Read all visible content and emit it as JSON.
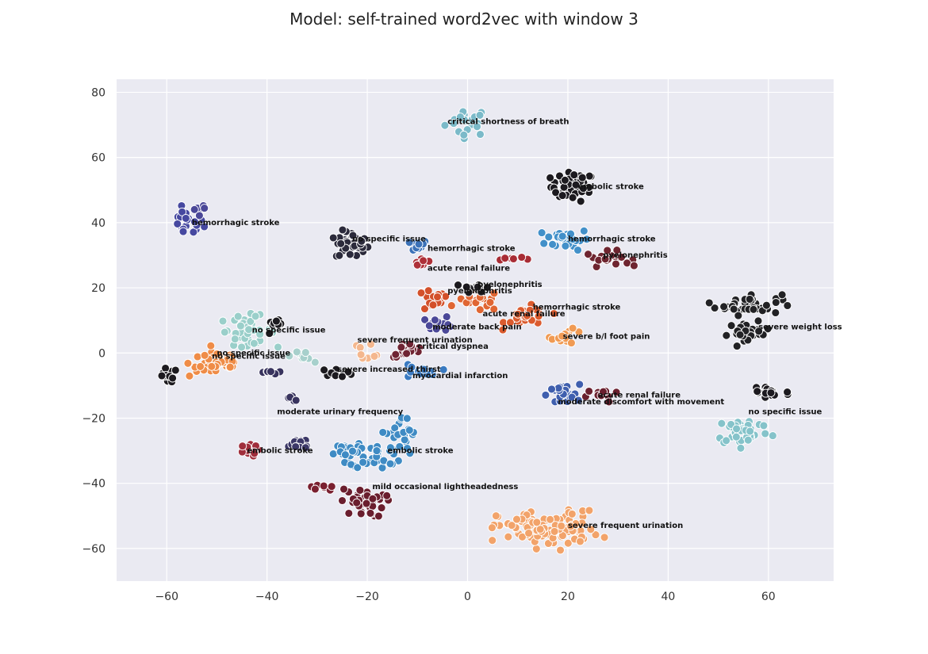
{
  "chart_data": {
    "type": "scatter",
    "title": "Model: self-trained word2vec with window 3",
    "xlabel": "",
    "ylabel": "",
    "xlim": [
      -70,
      73
    ],
    "ylim": [
      -70,
      84
    ],
    "x_ticks": [
      -60,
      -40,
      -20,
      0,
      20,
      40,
      60
    ],
    "y_ticks": [
      -60,
      -40,
      -20,
      0,
      20,
      40,
      60,
      80
    ],
    "x_tick_labels": [
      "−60",
      "−40",
      "−20",
      "0",
      "20",
      "40",
      "60"
    ],
    "y_tick_labels": [
      "−60",
      "−40",
      "−20",
      "0",
      "20",
      "40",
      "60",
      "80"
    ],
    "grid": true,
    "background": "#EAEAF2",
    "clusters": [
      {
        "cx": 0,
        "cy": 71,
        "rx": 4,
        "ry": 4,
        "n": 22,
        "color": "#7BBAC9"
      },
      {
        "cx": 21,
        "cy": 51,
        "rx": 4,
        "ry": 4,
        "n": 45,
        "color": "#1C1A1F"
      },
      {
        "cx": -56,
        "cy": 40,
        "rx": 3,
        "ry": 4,
        "n": 20,
        "color": "#4648A0"
      },
      {
        "cx": -23,
        "cy": 33,
        "rx": 3,
        "ry": 4,
        "n": 38,
        "color": "#2B2A3B"
      },
      {
        "cx": -11,
        "cy": 33,
        "rx": 3,
        "ry": 1.5,
        "n": 14,
        "color": "#3C72B8"
      },
      {
        "cx": -9,
        "cy": 28,
        "rx": 2,
        "ry": 1.5,
        "n": 10,
        "color": "#AE3038"
      },
      {
        "cx": 20,
        "cy": 35,
        "rx": 4,
        "ry": 3,
        "n": 35,
        "color": "#4290C9"
      },
      {
        "cx": 28,
        "cy": 29,
        "rx": 4,
        "ry": 2,
        "n": 22,
        "color": "#6E2530"
      },
      {
        "cx": 9,
        "cy": 29,
        "rx": 3,
        "ry": 1,
        "n": 6,
        "color": "#A82C35"
      },
      {
        "cx": 56,
        "cy": 15,
        "rx": 6,
        "ry": 3,
        "n": 40,
        "color": "#222225"
      },
      {
        "cx": 56,
        "cy": 6,
        "rx": 4,
        "ry": 3,
        "n": 25,
        "color": "#222225"
      },
      {
        "cx": -44,
        "cy": 7,
        "rx": 5,
        "ry": 4,
        "n": 40,
        "color": "#9ACFCA"
      },
      {
        "cx": -38,
        "cy": 8,
        "rx": 2,
        "ry": 2,
        "n": 10,
        "color": "#1C1A1F"
      },
      {
        "cx": -50,
        "cy": -3,
        "rx": 5,
        "ry": 4,
        "n": 45,
        "color": "#EF8C47"
      },
      {
        "cx": -60,
        "cy": -7,
        "rx": 2,
        "ry": 2,
        "n": 14,
        "color": "#1C1A1F"
      },
      {
        "cx": -7,
        "cy": 16,
        "rx": 3,
        "ry": 3,
        "n": 20,
        "color": "#D3502A"
      },
      {
        "cx": 2,
        "cy": 16,
        "rx": 4,
        "ry": 3,
        "n": 25,
        "color": "#E06633"
      },
      {
        "cx": 12,
        "cy": 11,
        "rx": 4,
        "ry": 3,
        "n": 25,
        "color": "#DB5B2E"
      },
      {
        "cx": 2,
        "cy": 20,
        "rx": 3,
        "ry": 1.5,
        "n": 12,
        "color": "#1C1A1F"
      },
      {
        "cx": -6,
        "cy": 9,
        "rx": 3,
        "ry": 2,
        "n": 14,
        "color": "#4B4898"
      },
      {
        "cx": 20,
        "cy": 5,
        "rx": 3,
        "ry": 2,
        "n": 14,
        "color": "#F09A53"
      },
      {
        "cx": -12,
        "cy": 1,
        "rx": 3,
        "ry": 2,
        "n": 22,
        "color": "#6F2433"
      },
      {
        "cx": -20,
        "cy": 1,
        "rx": 3,
        "ry": 2,
        "n": 8,
        "color": "#F4B78E"
      },
      {
        "cx": -33,
        "cy": -1,
        "rx": 2,
        "ry": 2,
        "n": 10,
        "color": "#A7D0CC"
      },
      {
        "cx": -10,
        "cy": -6,
        "rx": 4,
        "ry": 2,
        "n": 16,
        "color": "#3A7AC1"
      },
      {
        "cx": -26,
        "cy": -6,
        "rx": 3,
        "ry": 1,
        "n": 10,
        "color": "#1C1A1F"
      },
      {
        "cx": -40,
        "cy": -6,
        "rx": 2,
        "ry": 1,
        "n": 6,
        "color": "#38335E"
      },
      {
        "cx": 19,
        "cy": -13,
        "rx": 3,
        "ry": 3,
        "n": 30,
        "color": "#3F5FAE"
      },
      {
        "cx": 27,
        "cy": -13,
        "rx": 3,
        "ry": 2,
        "n": 10,
        "color": "#6A1F2E"
      },
      {
        "cx": 60,
        "cy": -12,
        "rx": 4,
        "ry": 3,
        "n": 18,
        "color": "#1C1A1F"
      },
      {
        "cx": 55,
        "cy": -24,
        "rx": 5,
        "ry": 4,
        "n": 40,
        "color": "#85C3CA"
      },
      {
        "cx": -13,
        "cy": -25,
        "rx": 3,
        "ry": 5,
        "n": 22,
        "color": "#3F8BC4"
      },
      {
        "cx": -18,
        "cy": -31,
        "rx": 5,
        "ry": 4,
        "n": 38,
        "color": "#3F8BC4"
      },
      {
        "cx": -25,
        "cy": -30,
        "rx": 3,
        "ry": 2,
        "n": 12,
        "color": "#3F8BC4"
      },
      {
        "cx": -34,
        "cy": -28,
        "rx": 3,
        "ry": 2,
        "n": 16,
        "color": "#3C3868"
      },
      {
        "cx": -44,
        "cy": -30,
        "rx": 2,
        "ry": 1.5,
        "n": 12,
        "color": "#A02E3C"
      },
      {
        "cx": -21,
        "cy": -46,
        "rx": 4,
        "ry": 4,
        "n": 40,
        "color": "#6A1E2E"
      },
      {
        "cx": -29,
        "cy": -41,
        "rx": 2,
        "ry": 1.5,
        "n": 8,
        "color": "#7A2030"
      },
      {
        "cx": 16,
        "cy": -54,
        "rx": 9,
        "ry": 5,
        "n": 110,
        "color": "#F2A36A"
      },
      {
        "cx": -36,
        "cy": -14,
        "rx": 1.5,
        "ry": 1,
        "n": 5,
        "color": "#38335E"
      },
      {
        "cx": -53,
        "cy": 44,
        "rx": 1.5,
        "ry": 1.5,
        "n": 6,
        "color": "#4B4898"
      }
    ],
    "annotations": [
      {
        "text": "critical shortness of breath",
        "x": -4,
        "y": 71
      },
      {
        "text": "embolic stroke",
        "x": 22,
        "y": 51
      },
      {
        "text": "hemorrhagic stroke",
        "x": -55,
        "y": 40
      },
      {
        "text": "no specific issue",
        "x": -23,
        "y": 35
      },
      {
        "text": "hemorrhagic stroke",
        "x": -8,
        "y": 32
      },
      {
        "text": "hemorrhagic stroke",
        "x": 20,
        "y": 35
      },
      {
        "text": "acute renal failure",
        "x": -8,
        "y": 26
      },
      {
        "text": "pyelonephritis",
        "x": 27,
        "y": 30
      },
      {
        "text": "pyelonephritis",
        "x": 2,
        "y": 21
      },
      {
        "text": "pyelonephritis",
        "x": -4,
        "y": 19
      },
      {
        "text": "hemorrhagic stroke",
        "x": 13,
        "y": 14
      },
      {
        "text": "acute renal failure",
        "x": 3,
        "y": 12
      },
      {
        "text": "severe weight loss",
        "x": 58,
        "y": 8
      },
      {
        "text": "moderate back pain",
        "x": -7,
        "y": 8
      },
      {
        "text": "severe b/l foot pain",
        "x": 19,
        "y": 5
      },
      {
        "text": "no specific issue",
        "x": -43,
        "y": 7
      },
      {
        "text": "severe frequent urination",
        "x": -22,
        "y": 4
      },
      {
        "text": "critical dyspnea",
        "x": -10,
        "y": 2
      },
      {
        "text": "no specific issue",
        "x": -50,
        "y": 0
      },
      {
        "text": "no specific issue",
        "x": -51,
        "y": -1
      },
      {
        "text": "severe increased thirst",
        "x": -26,
        "y": -5
      },
      {
        "text": "myocardial infarction",
        "x": -11,
        "y": -7
      },
      {
        "text": "acute renal failure",
        "x": 26,
        "y": -13
      },
      {
        "text": "moderate discomfort with movement",
        "x": 18,
        "y": -15
      },
      {
        "text": "no specific issue",
        "x": 56,
        "y": -18
      },
      {
        "text": "moderate urinary frequency",
        "x": -38,
        "y": -18
      },
      {
        "text": "embolic stroke",
        "x": -44,
        "y": -30
      },
      {
        "text": "embolic stroke",
        "x": -16,
        "y": -30
      },
      {
        "text": "mild occasional lightheadedness",
        "x": -19,
        "y": -41
      },
      {
        "text": "severe frequent urination",
        "x": 20,
        "y": -53
      }
    ]
  }
}
